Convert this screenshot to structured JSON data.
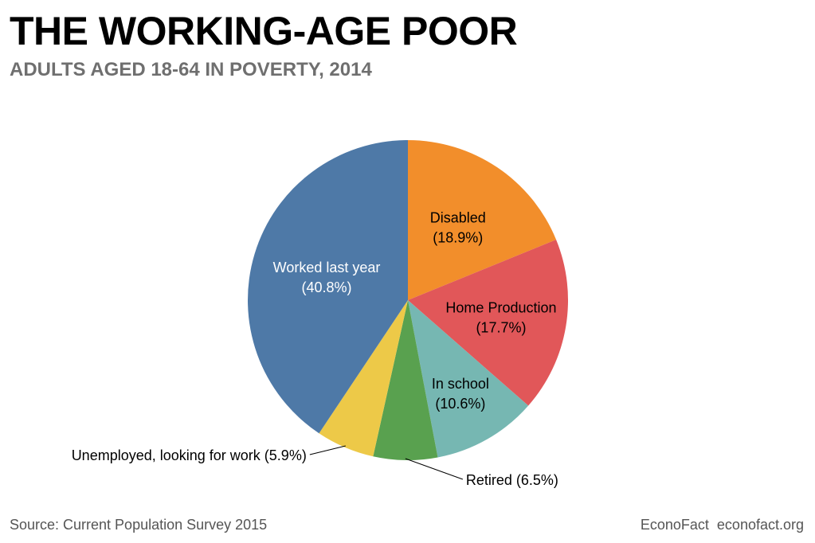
{
  "header": {
    "title": "THE WORKING-AGE POOR",
    "subtitle": "ADULTS AGED 18-64 IN POVERTY, 2014"
  },
  "footer": {
    "source": "Source: Current Population Survey 2015",
    "brand": "EconoFact  econofact.org"
  },
  "chart_data": {
    "type": "pie",
    "title": "THE WORKING-AGE POOR",
    "subtitle": "ADULTS AGED 18-64 IN POVERTY, 2014",
    "start": "12 o'clock",
    "direction": "clockwise",
    "slices": [
      {
        "label": "Disabled",
        "pct_text": "(18.9%)",
        "value": 18.9,
        "color": "#f28e2b",
        "text_color": "#000000",
        "label_style": "inside"
      },
      {
        "label": "Home Production",
        "pct_text": "(17.7%)",
        "value": 17.7,
        "color": "#e15759",
        "text_color": "#000000",
        "label_style": "inside"
      },
      {
        "label": "In school",
        "pct_text": "(10.6%)",
        "value": 10.6,
        "color": "#76b7b2",
        "text_color": "#000000",
        "label_style": "inside"
      },
      {
        "label": "Retired (6.5%)",
        "pct_text": "",
        "value": 6.5,
        "color": "#59a14f",
        "text_color": "#000000",
        "label_style": "callout-right"
      },
      {
        "label": "Unemployed, looking for work (5.9%)",
        "pct_text": "",
        "value": 5.9,
        "color": "#edc948",
        "text_color": "#000000",
        "label_style": "callout-left"
      },
      {
        "label": "Worked last year",
        "pct_text": "(40.8%)",
        "value": 40.8,
        "color": "#4e79a7",
        "text_color": "#ffffff",
        "label_style": "inside"
      }
    ]
  }
}
